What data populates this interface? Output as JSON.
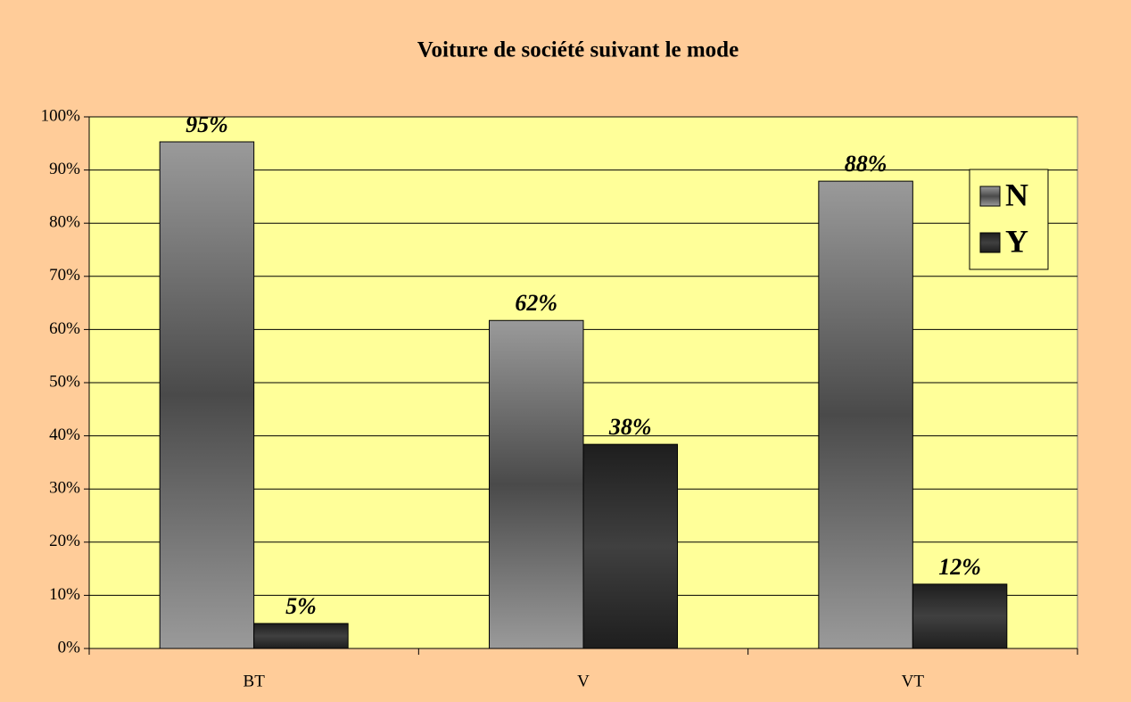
{
  "chart_data": {
    "type": "bar",
    "title": "Voiture de société suivant le mode",
    "categories": [
      "BT",
      "V",
      "VT"
    ],
    "series": [
      {
        "name": "N",
        "color": "#8c8c8c",
        "values": [
          95.3,
          61.7,
          87.9
        ],
        "value_labels": [
          "95%",
          "62%",
          "88%"
        ]
      },
      {
        "name": "Y",
        "color": "#2a2a2a",
        "values": [
          4.7,
          38.4,
          12.1
        ],
        "value_labels": [
          "5%",
          "38%",
          "12%"
        ]
      }
    ],
    "ylim": [
      0,
      100
    ],
    "yticks": [
      {
        "value": 0,
        "label": "0%"
      },
      {
        "value": 10,
        "label": "10%"
      },
      {
        "value": 20,
        "label": "20%"
      },
      {
        "value": 30,
        "label": "30%"
      },
      {
        "value": 40,
        "label": "40%"
      },
      {
        "value": 50,
        "label": "50%"
      },
      {
        "value": 60,
        "label": "60%"
      },
      {
        "value": 70,
        "label": "70%"
      },
      {
        "value": 80,
        "label": "80%"
      },
      {
        "value": 90,
        "label": "90%"
      },
      {
        "value": 100,
        "label": "100%"
      }
    ],
    "grid": true,
    "legend": "right"
  }
}
